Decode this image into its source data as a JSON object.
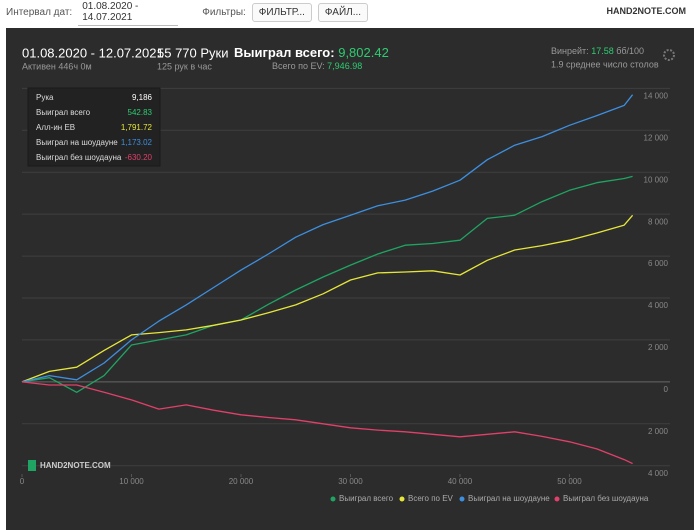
{
  "toolbar": {
    "interval_label": "Интервал дат:",
    "interval_value": "01.08.2020 - 14.07.2021",
    "filters_label": "Фильтры:",
    "filter_button": "ФИЛЬТР...",
    "file_button": "ФАЙЛ...",
    "logo": "HAND2NOTE.COM"
  },
  "summary": {
    "period": "01.08.2020 - 12.07.2021",
    "active": "Активен 446ч 0м",
    "hands": "55 770 Руки",
    "hands_per_hour": "125 рук в час",
    "won_label": "Выиграл всего:",
    "won_value": "9,802.42",
    "ev_label": "Всего по EV:",
    "ev_value": "7,946.98",
    "winrate_label": "Винрейт:",
    "winrate_value": "17.58",
    "winrate_unit": "бб/100",
    "tables": "1.9 среднее число столов"
  },
  "tooltip": {
    "rows": [
      [
        "Рука",
        "9,186"
      ],
      [
        "Выиграл всего",
        "542.83"
      ],
      [
        "Алл-ин EB",
        "1,791.72"
      ],
      [
        "Выиграл на шоудауне",
        "1,173.02"
      ],
      [
        "Выиграл без шоудауна",
        "-630.20"
      ]
    ]
  },
  "chart_data": {
    "type": "line",
    "watermark": "HAND2NOTE.COM",
    "x": [
      0,
      2500,
      5000,
      7500,
      10000,
      12500,
      15000,
      17500,
      20000,
      22500,
      25000,
      27500,
      30000,
      32500,
      35000,
      37500,
      40000,
      42500,
      45000,
      47500,
      50000,
      52500,
      55000,
      55770
    ],
    "series": [
      {
        "name": "Выиграл всего",
        "color": "#1fa463",
        "values": [
          0,
          200,
          -500,
          300,
          1760,
          2000,
          2240,
          2700,
          2950,
          3700,
          4380,
          5000,
          5570,
          6100,
          6520,
          6600,
          6760,
          7800,
          7950,
          8600,
          9140,
          9500,
          9700,
          9802
        ]
      },
      {
        "name": "Всего по EV",
        "color": "#e6e63a",
        "values": [
          0,
          500,
          700,
          1500,
          2240,
          2350,
          2480,
          2700,
          2950,
          3300,
          3670,
          4200,
          4860,
          5200,
          5240,
          5300,
          5100,
          5800,
          6290,
          6500,
          6760,
          7100,
          7480,
          7947
        ]
      },
      {
        "name": "Выиграл на шоудауне",
        "color": "#3d8fe0",
        "values": [
          0,
          300,
          100,
          900,
          2000,
          2900,
          3670,
          4500,
          5330,
          6100,
          6900,
          7500,
          7950,
          8400,
          8670,
          9100,
          9620,
          10600,
          11290,
          11700,
          12240,
          12700,
          13190,
          13700
        ]
      },
      {
        "name": "Выиграл без шоудауна",
        "color": "#e0406a",
        "values": [
          0,
          -150,
          -150,
          -500,
          -860,
          -1300,
          -1100,
          -1350,
          -1570,
          -1700,
          -1810,
          -2000,
          -2190,
          -2300,
          -2380,
          -2500,
          -2620,
          -2500,
          -2380,
          -2600,
          -2860,
          -3200,
          -3710,
          -3900
        ]
      }
    ],
    "xlim": [
      0,
      59000
    ],
    "xticks": [
      0,
      {
        "value": 10000,
        "label": "10 000"
      },
      {
        "value": 20000,
        "label": "20 000"
      },
      {
        "value": 30000,
        "label": "30 000"
      },
      {
        "value": 40000,
        "label": "40 000"
      },
      {
        "value": 50000,
        "label": "50 000"
      }
    ],
    "ylim": [
      -4300,
      14400
    ],
    "yticks": [
      {
        "value": -4000,
        "label": "4 000"
      },
      {
        "value": -2000,
        "label": "2 000"
      },
      0,
      {
        "value": 2000,
        "label": "2 000"
      },
      {
        "value": 4000,
        "label": "4 000"
      },
      {
        "value": 6000,
        "label": "6 000"
      },
      {
        "value": 8000,
        "label": "8 000"
      },
      {
        "value": 10000,
        "label": "10 000"
      },
      {
        "value": 12000,
        "label": "12 000"
      },
      {
        "value": 14000,
        "label": "14 000"
      }
    ],
    "grid": true,
    "legend": "bottom-right"
  }
}
